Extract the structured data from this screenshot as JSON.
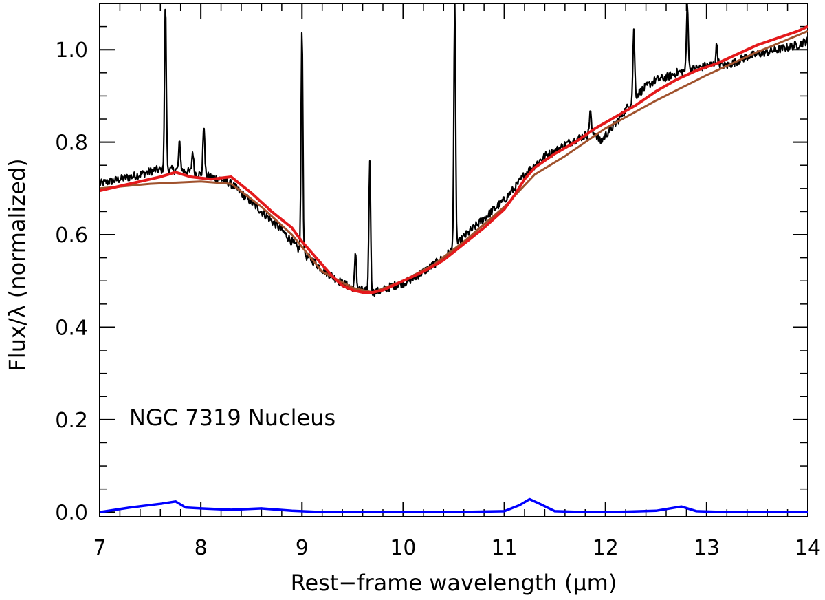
{
  "chart_data": {
    "type": "line",
    "title": "",
    "annotation": "NGC 7319 Nucleus",
    "xlabel": "Rest−frame wavelength (μm)",
    "ylabel": "Flux/λ (normalized)",
    "xlim": [
      7,
      14
    ],
    "ylim": [
      -0.01,
      1.1
    ],
    "x_ticks": [
      7,
      8,
      9,
      10,
      11,
      12,
      13,
      14
    ],
    "x_tick_labels": [
      "7",
      "8",
      "9",
      "10",
      "11",
      "12",
      "13",
      "14"
    ],
    "y_ticks": [
      0.0,
      0.2,
      0.4,
      0.6,
      0.8,
      1.0
    ],
    "y_tick_labels": [
      "0.0",
      "0.2",
      "0.4",
      "0.6",
      "0.8",
      "1.0"
    ],
    "grid": false,
    "legend": "none",
    "series": [
      {
        "role": "observed spectrum",
        "color": "#000000",
        "x": [
          7.0,
          7.2,
          7.4,
          7.55,
          7.7,
          7.8,
          7.9,
          8.0,
          8.1,
          8.2,
          8.3,
          8.4,
          8.5,
          8.6,
          8.7,
          8.8,
          8.9,
          9.0,
          9.1,
          9.2,
          9.3,
          9.4,
          9.5,
          9.6,
          9.7,
          9.8,
          9.9,
          10.0,
          10.1,
          10.2,
          10.3,
          10.4,
          10.5,
          10.6,
          10.7,
          10.8,
          10.9,
          11.0,
          11.1,
          11.2,
          11.3,
          11.4,
          11.5,
          11.6,
          11.7,
          11.8,
          11.9,
          11.95,
          12.0,
          12.1,
          12.2,
          12.3,
          12.4,
          12.5,
          12.6,
          12.7,
          12.8,
          12.9,
          13.0,
          13.1,
          13.2,
          13.3,
          13.4,
          13.5,
          13.6,
          13.7,
          13.8,
          13.9,
          14.0
        ],
        "y": [
          0.71,
          0.72,
          0.73,
          0.74,
          0.74,
          0.74,
          0.735,
          0.73,
          0.725,
          0.72,
          0.71,
          0.69,
          0.67,
          0.65,
          0.63,
          0.61,
          0.585,
          0.56,
          0.545,
          0.525,
          0.51,
          0.495,
          0.485,
          0.48,
          0.475,
          0.48,
          0.49,
          0.495,
          0.505,
          0.52,
          0.535,
          0.55,
          0.57,
          0.595,
          0.615,
          0.635,
          0.655,
          0.675,
          0.7,
          0.73,
          0.75,
          0.77,
          0.78,
          0.795,
          0.805,
          0.815,
          0.82,
          0.8,
          0.815,
          0.84,
          0.87,
          0.9,
          0.92,
          0.935,
          0.94,
          0.95,
          0.955,
          0.96,
          0.965,
          0.97,
          0.965,
          0.975,
          0.985,
          0.99,
          0.995,
          1.0,
          1.005,
          1.01,
          1.02
        ]
      },
      {
        "role": "emission lines (peaks above spectrum)",
        "color": "#000000",
        "lines": [
          {
            "x": 7.65,
            "peak": 1.1
          },
          {
            "x": 7.79,
            "peak": 0.8
          },
          {
            "x": 7.92,
            "peak": 0.78
          },
          {
            "x": 8.03,
            "peak": 0.84
          },
          {
            "x": 9.0,
            "peak": 1.05
          },
          {
            "x": 9.53,
            "peak": 0.56
          },
          {
            "x": 9.67,
            "peak": 0.76
          },
          {
            "x": 10.51,
            "peak": 1.1
          },
          {
            "x": 11.85,
            "peak": 0.87
          },
          {
            "x": 12.28,
            "peak": 1.04
          },
          {
            "x": 12.81,
            "peak": 1.1
          },
          {
            "x": 13.1,
            "peak": 1.01
          }
        ]
      },
      {
        "role": "model fit",
        "color": "#e41a1c",
        "x": [
          7.0,
          7.3,
          7.6,
          7.75,
          7.9,
          8.1,
          8.3,
          8.5,
          8.7,
          8.9,
          9.0,
          9.1,
          9.2,
          9.3,
          9.4,
          9.5,
          9.6,
          9.7,
          9.8,
          9.9,
          10.0,
          10.2,
          10.4,
          10.6,
          10.8,
          11.0,
          11.1,
          11.2,
          11.3,
          11.5,
          11.7,
          11.9,
          12.1,
          12.3,
          12.5,
          12.7,
          12.9,
          13.1,
          13.3,
          13.5,
          13.7,
          13.9,
          14.0
        ],
        "y": [
          0.695,
          0.71,
          0.725,
          0.735,
          0.725,
          0.72,
          0.725,
          0.69,
          0.65,
          0.615,
          0.585,
          0.56,
          0.535,
          0.51,
          0.49,
          0.48,
          0.475,
          0.475,
          0.48,
          0.49,
          0.5,
          0.52,
          0.545,
          0.58,
          0.615,
          0.655,
          0.685,
          0.72,
          0.745,
          0.775,
          0.8,
          0.83,
          0.855,
          0.88,
          0.91,
          0.935,
          0.955,
          0.97,
          0.99,
          1.01,
          1.025,
          1.04,
          1.05
        ]
      },
      {
        "role": "continuum",
        "color": "#a0522d",
        "x": [
          7.0,
          7.5,
          8.0,
          8.3,
          8.6,
          8.9,
          9.2,
          9.5,
          9.7,
          10.0,
          10.3,
          10.6,
          11.0,
          11.3,
          11.6,
          12.0,
          12.5,
          13.0,
          13.5,
          14.0
        ],
        "y": [
          0.7,
          0.71,
          0.715,
          0.71,
          0.66,
          0.6,
          0.52,
          0.485,
          0.475,
          0.5,
          0.535,
          0.585,
          0.66,
          0.73,
          0.77,
          0.83,
          0.89,
          0.945,
          0.995,
          1.04
        ]
      },
      {
        "role": "PAH / residual component",
        "color": "#0000ff",
        "x": [
          7.0,
          7.3,
          7.6,
          7.75,
          7.85,
          8.0,
          8.3,
          8.6,
          8.9,
          9.2,
          9.5,
          10.0,
          10.5,
          11.0,
          11.15,
          11.25,
          11.35,
          11.5,
          11.8,
          12.2,
          12.5,
          12.75,
          12.9,
          13.2,
          14.0
        ],
        "y": [
          0.0,
          0.01,
          0.018,
          0.023,
          0.01,
          0.008,
          0.005,
          0.008,
          0.003,
          0.0,
          0.0,
          0.0,
          0.0,
          0.002,
          0.015,
          0.028,
          0.018,
          0.002,
          0.0,
          0.001,
          0.003,
          0.012,
          0.002,
          0.0,
          0.0
        ]
      }
    ]
  }
}
